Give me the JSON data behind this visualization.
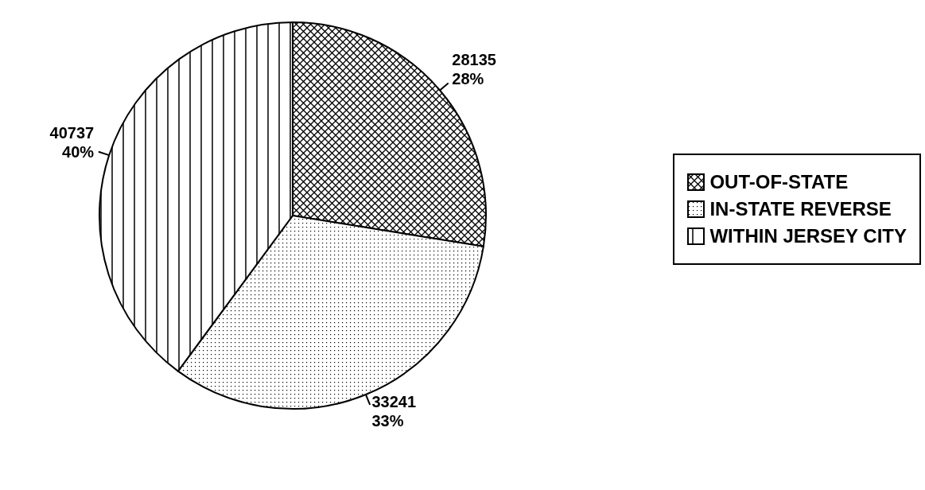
{
  "chart_data": {
    "type": "pie",
    "categories": [
      "OUT-OF-STATE",
      "IN-STATE REVERSE",
      "WITHIN JERSEY CITY"
    ],
    "values": [
      28135,
      33241,
      40737
    ],
    "value_labels": [
      "28135\n28%",
      "33241\n33%",
      "40737\n40%"
    ],
    "colors": [
      "#000000",
      "#000000",
      "#000000"
    ],
    "legend": "right"
  }
}
